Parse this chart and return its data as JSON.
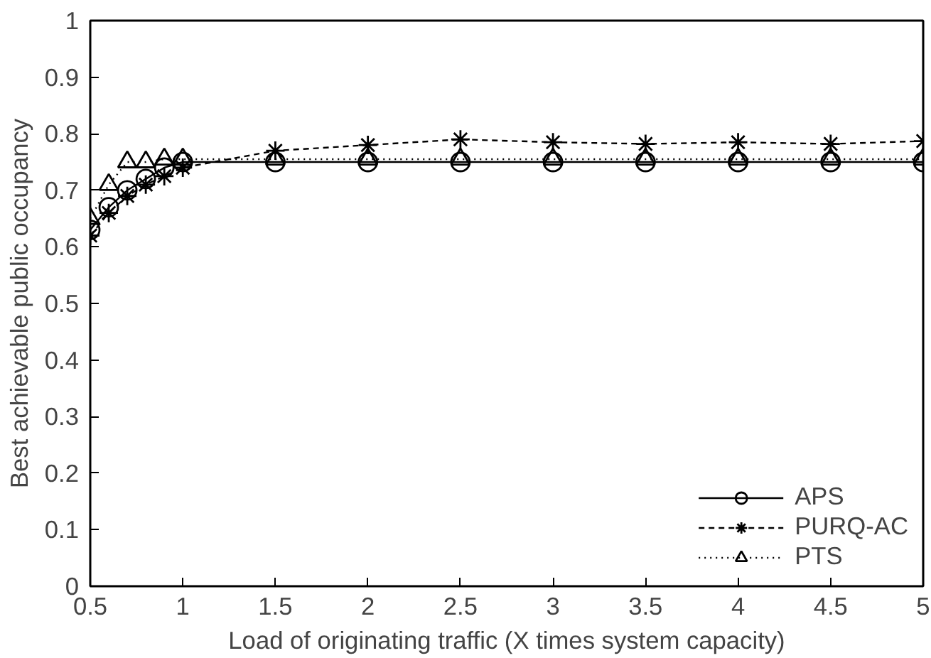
{
  "chart_data": {
    "type": "line",
    "xlabel": "Load of originating traffic (X times system capacity)",
    "ylabel": "Best achievable public occupancy",
    "x": [
      0.5,
      0.6,
      0.7,
      0.8,
      0.9,
      1.0,
      1.5,
      2,
      2.5,
      3,
      3.5,
      4,
      4.5,
      5
    ],
    "series": [
      {
        "name": "APS",
        "color": "#000000",
        "marker": "circle",
        "line_style": "solid",
        "values": [
          0.63,
          0.67,
          0.7,
          0.72,
          0.74,
          0.75,
          0.75,
          0.75,
          0.75,
          0.75,
          0.75,
          0.75,
          0.75,
          0.75
        ]
      },
      {
        "name": "PURQ-AC",
        "color": "#000000",
        "marker": "cross",
        "line_style": "dashed",
        "values": [
          0.62,
          0.66,
          0.69,
          0.71,
          0.725,
          0.74,
          0.77,
          0.78,
          0.79,
          0.785,
          0.782,
          0.785,
          0.782,
          0.787
        ]
      },
      {
        "name": "PTS",
        "color": "#000000",
        "marker": "triangle",
        "line_style": "dotted",
        "values": [
          0.65,
          0.71,
          0.75,
          0.75,
          0.755,
          0.755,
          0.755,
          0.755,
          0.755,
          0.755,
          0.755,
          0.755,
          0.755,
          0.755
        ]
      }
    ],
    "xlim": [
      0.5,
      5
    ],
    "ylim": [
      0,
      1
    ],
    "xticks": [
      0.5,
      1,
      1.5,
      2,
      2.5,
      3,
      3.5,
      4,
      4.5,
      5
    ],
    "yticks": [
      0,
      0.1,
      0.2,
      0.3,
      0.4,
      0.5,
      0.6,
      0.7,
      0.8,
      0.9,
      1
    ],
    "grid": false,
    "legend": "bottom right"
  }
}
